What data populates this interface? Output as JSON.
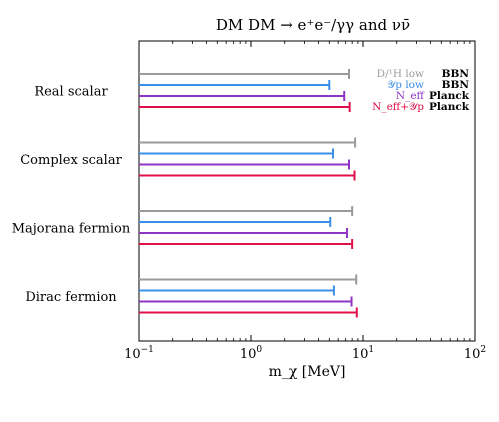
{
  "chart_data": {
    "type": "bar",
    "orientation": "horizontal",
    "title": "DM DM → e⁺e⁻/γγ and νν̄",
    "xlabel": "m_χ [MeV]",
    "xscale": "log",
    "xlim": [
      0.1,
      100
    ],
    "xticks": [
      {
        "value": 0.1,
        "base": "10",
        "exp": "−1"
      },
      {
        "value": 1,
        "base": "10",
        "exp": "0"
      },
      {
        "value": 10,
        "base": "10",
        "exp": "1"
      },
      {
        "value": 100,
        "base": "10",
        "exp": "2"
      }
    ],
    "categories": [
      "Real scalar",
      "Complex scalar",
      "Majorana fermion",
      "Dirac fermion"
    ],
    "series": [
      {
        "name": "D/¹H low",
        "tag": "BBN",
        "color": "#9a9a9a",
        "values": [
          7.5,
          8.5,
          8.0,
          8.7
        ]
      },
      {
        "name": "𝒴p low",
        "tag": "BBN",
        "color": "#3b8fe8",
        "values": [
          5.0,
          5.4,
          5.1,
          5.5
        ]
      },
      {
        "name": "N_eff",
        "tag": "Planck",
        "color": "#8e35c4",
        "values": [
          6.8,
          7.5,
          7.2,
          7.9
        ]
      },
      {
        "name": "N_eff+𝒴p",
        "tag": "Planck",
        "color": "#e0104a",
        "values": [
          7.6,
          8.4,
          8.0,
          8.8
        ]
      }
    ],
    "legend_placement": "top-right",
    "grid": false
  }
}
